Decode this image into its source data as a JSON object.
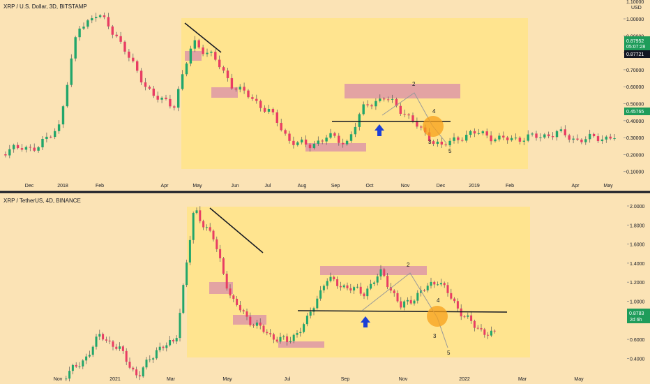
{
  "colors": {
    "background": "#fbe3b5",
    "highlight_box": "#ffe48f",
    "zone": "#e3a3a3",
    "bull": "#21a66a",
    "bear": "#e83d63",
    "wick": "#555555",
    "price_green": "#1e9c5a",
    "price_black": "#131722",
    "arrow": "#1c3fd6",
    "circle": "#f7a01a"
  },
  "panels": [
    {
      "id": "top",
      "symbol_label": "XRP / U.S. Dollar, 3D, BITSTAMP",
      "unit_label": "USD",
      "y_ticks": [
        "1.00000",
        "0.90000",
        "0.80000",
        "0.70000",
        "0.60000",
        "0.50000",
        "0.40000",
        "0.30000",
        "0.20000",
        "0.10000"
      ],
      "x_ticks": [
        "Dec",
        "2018",
        "Feb",
        "Apr",
        "May",
        "Jun",
        "Jul",
        "Aug",
        "Sep",
        "Oct",
        "Nov",
        "Dec",
        "2019",
        "Feb",
        "Apr",
        "May"
      ],
      "top_tick": "1.10000",
      "price_tags": [
        {
          "text": "0.87952",
          "sub": "05:07:28",
          "style": "green"
        },
        {
          "text": "0.87721",
          "style": "black"
        },
        {
          "text": "0.45765",
          "style": "green"
        }
      ],
      "wave_labels": [
        "2",
        "4",
        "3",
        "5"
      ]
    },
    {
      "id": "bottom",
      "symbol_label": "XRP / TetherUS, 4D, BINANCE",
      "y_ticks": [
        "2.0000",
        "1.8000",
        "1.6000",
        "1.4000",
        "1.2000",
        "1.0000",
        "0.8000",
        "0.6000",
        "0.4000"
      ],
      "x_ticks": [
        "Nov",
        "2021",
        "Mar",
        "May",
        "Jul",
        "Sep",
        "Nov",
        "2022",
        "Mar",
        "May"
      ],
      "price_tags": [
        {
          "text": "0.8783",
          "sub": "2d 6h",
          "style": "green"
        }
      ],
      "wave_labels": [
        "2",
        "4",
        "3",
        "5"
      ]
    }
  ],
  "chart_data": [
    {
      "type": "candlestick",
      "title": "XRP / U.S. Dollar, 3D, BITSTAMP",
      "y_unit": "USD",
      "ylim": [
        0.05,
        1.1
      ],
      "x_axis": [
        "Dec",
        "2018",
        "Feb",
        "Apr",
        "May",
        "Jun",
        "Jul",
        "Aug",
        "Sep",
        "Oct",
        "Nov",
        "Dec",
        "2019",
        "Feb",
        "Apr",
        "May"
      ],
      "annotations": {
        "resistance_zone": [
          0.55,
          0.62
        ],
        "support_line": 0.41,
        "support_zone": [
          0.23,
          0.27
        ],
        "waves": [
          "2",
          "4",
          "3",
          "5"
        ]
      },
      "last_price": 0.87952,
      "marked_prices": [
        0.87721,
        0.45765
      ]
    },
    {
      "type": "candlestick",
      "title": "XRP / TetherUS, 4D, BINANCE",
      "ylim": [
        0.3,
        2.1
      ],
      "x_axis": [
        "Nov",
        "2021",
        "Mar",
        "May",
        "Jul",
        "Sep",
        "Nov",
        "2022",
        "Mar",
        "May"
      ],
      "annotations": {
        "resistance_zone": [
          1.28,
          1.38
        ],
        "support_line": 0.93,
        "support_zone": [
          0.52,
          0.58
        ],
        "waves": [
          "2",
          "4",
          "3",
          "5"
        ]
      },
      "last_price": 0.8783
    }
  ]
}
